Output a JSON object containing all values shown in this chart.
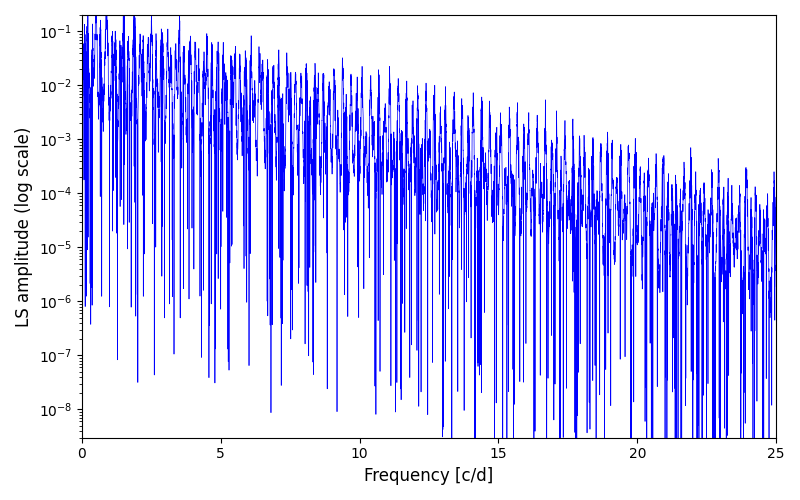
{
  "title": "",
  "xlabel": "Frequency [c/d]",
  "ylabel": "LS amplitude (log scale)",
  "xlim": [
    0,
    25
  ],
  "ylim": [
    3e-09,
    0.2
  ],
  "line_color": "#0000ff",
  "line_width": 0.5,
  "freq_max": 25.0,
  "n_points": 10000,
  "seed": 7,
  "fig_width": 8.0,
  "fig_height": 5.0,
  "dpi": 100
}
